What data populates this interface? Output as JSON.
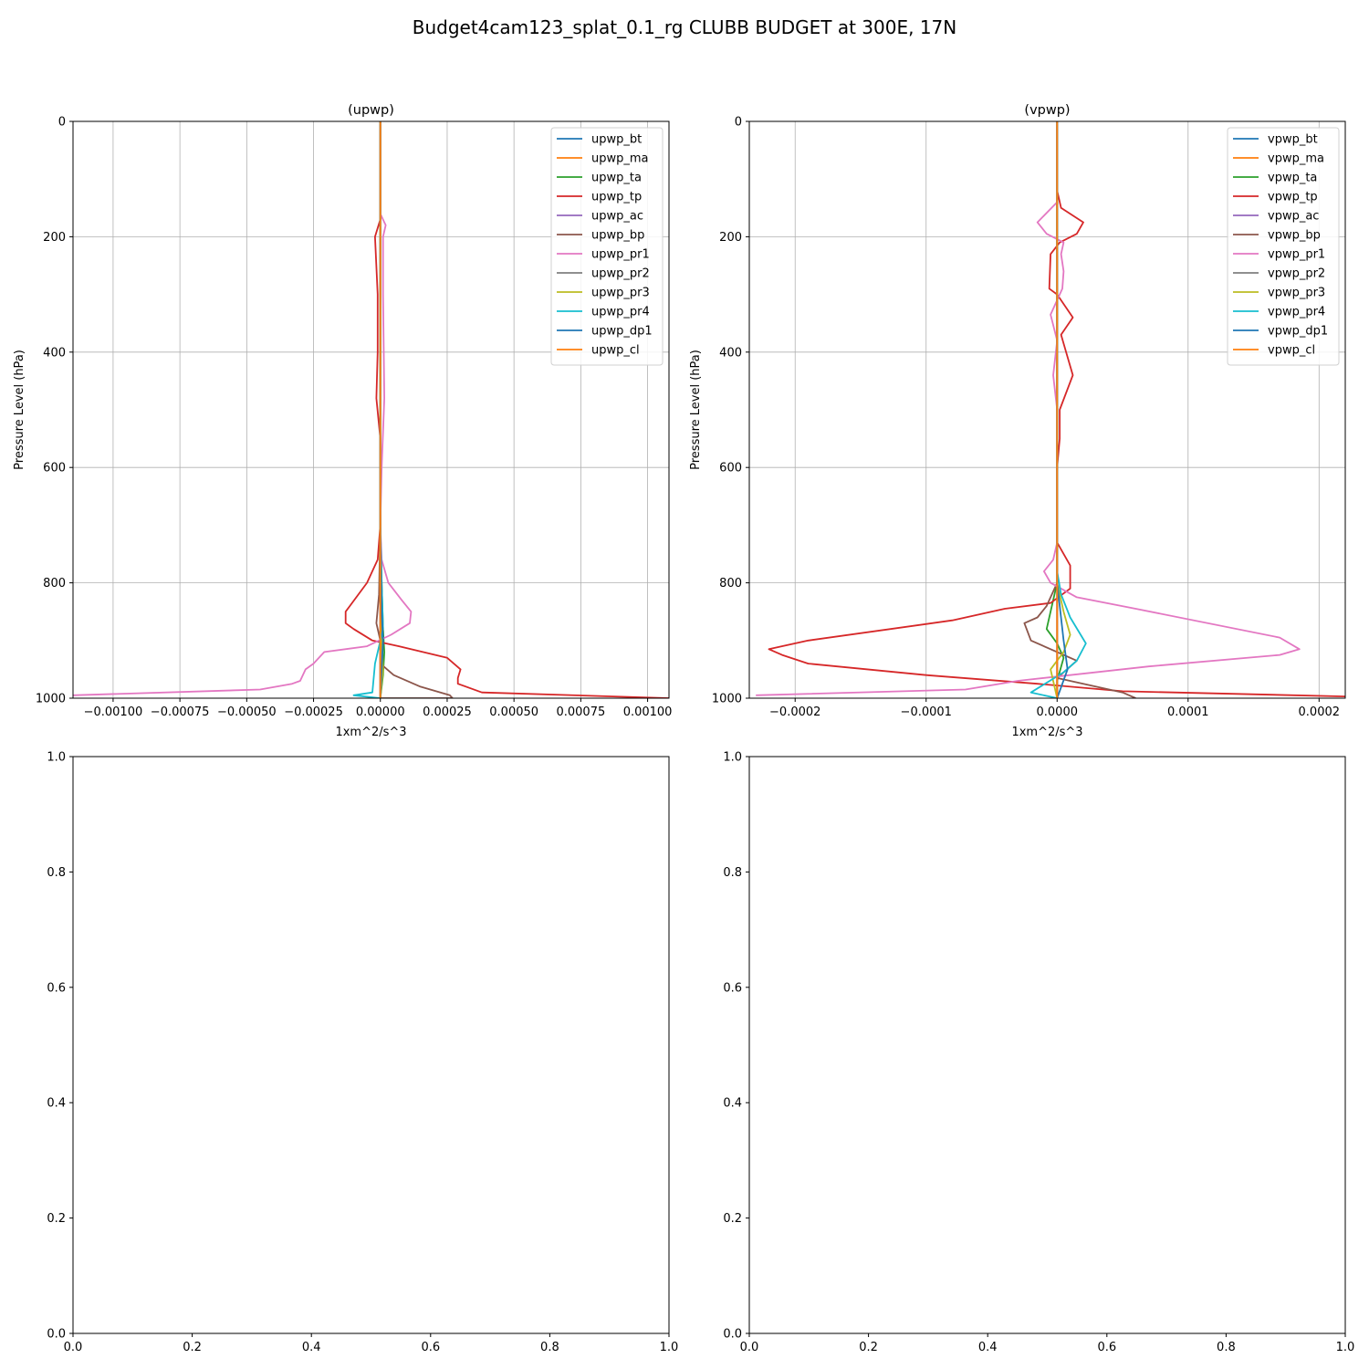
{
  "figure": {
    "title": "Budget4cam123_splat_0.1_rg CLUBB BUDGET at 300E, 17N"
  },
  "chart_data": [
    {
      "type": "line",
      "title": "(upwp)",
      "xlabel": "1xm^2/s^3",
      "ylabel": "Pressure Level (hPa)",
      "xlim": [
        -0.00115,
        0.00108
      ],
      "ylim": [
        1000,
        0
      ],
      "x_ticks": [
        -0.001,
        -0.00075,
        -0.0005,
        -0.00025,
        0.0,
        0.00025,
        0.0005,
        0.00075,
        0.001
      ],
      "x_tick_labels": [
        "−0.00100",
        "−0.00075",
        "−0.00050",
        "−0.00025",
        "0.00000",
        "0.00025",
        "0.00050",
        "0.00075",
        "0.00100"
      ],
      "y_ticks": [
        0,
        200,
        400,
        600,
        800,
        1000
      ],
      "y_tick_labels": [
        "0",
        "200",
        "400",
        "600",
        "800",
        "1000"
      ],
      "grid": true,
      "legend": "top-right",
      "series": [
        {
          "name": "upwp_bt",
          "color": "#1f77b4",
          "points": [
            [
              0,
              0
            ],
            [
              0,
              1000
            ]
          ]
        },
        {
          "name": "upwp_ma",
          "color": "#ff7f0e",
          "points": [
            [
              0,
              0
            ],
            [
              0,
              1000
            ]
          ]
        },
        {
          "name": "upwp_ta",
          "color": "#2ca02c",
          "points": [
            [
              0,
              0
            ],
            [
              0,
              700
            ],
            [
              5e-06,
              800
            ],
            [
              1e-05,
              880
            ],
            [
              1.5e-05,
              920
            ],
            [
              1e-05,
              960
            ],
            [
              0,
              1000
            ]
          ]
        },
        {
          "name": "upwp_tp",
          "color": "#d62728",
          "points": [
            [
              0,
              0
            ],
            [
              0,
              170
            ],
            [
              -2e-05,
              200
            ],
            [
              -1e-05,
              300
            ],
            [
              -1e-05,
              400
            ],
            [
              -1.5e-05,
              480
            ],
            [
              0,
              550
            ],
            [
              0,
              700
            ],
            [
              -1e-05,
              760
            ],
            [
              -5e-05,
              800
            ],
            [
              -0.00013,
              850
            ],
            [
              -0.00013,
              870
            ],
            [
              -0.0001,
              880
            ],
            [
              -3e-05,
              900
            ],
            [
              7e-05,
              910
            ],
            [
              0.00025,
              930
            ],
            [
              0.0003,
              950
            ],
            [
              0.00029,
              965
            ],
            [
              0.00029,
              975
            ],
            [
              0.00038,
              990
            ],
            [
              0.00108,
              1000
            ]
          ]
        },
        {
          "name": "upwp_ac",
          "color": "#9467bd",
          "points": [
            [
              0,
              0
            ],
            [
              0,
              1000
            ]
          ]
        },
        {
          "name": "upwp_bp",
          "color": "#8c564b",
          "points": [
            [
              0,
              0
            ],
            [
              0,
              700
            ],
            [
              -5e-06,
              820
            ],
            [
              -1.5e-05,
              870
            ],
            [
              0,
              900
            ],
            [
              0,
              940
            ],
            [
              5e-05,
              960
            ],
            [
              0.00015,
              980
            ],
            [
              0.00026,
              995
            ],
            [
              0.00027,
              1000
            ],
            [
              0,
              1000
            ]
          ]
        },
        {
          "name": "upwp_pr1",
          "color": "#e377c2",
          "points": [
            [
              0,
              0
            ],
            [
              0,
              160
            ],
            [
              2e-05,
              180
            ],
            [
              1e-05,
              200
            ],
            [
              1e-05,
              300
            ],
            [
              1.5e-05,
              480
            ],
            [
              5e-06,
              600
            ],
            [
              0,
              700
            ],
            [
              5e-06,
              760
            ],
            [
              3e-05,
              800
            ],
            [
              8e-05,
              830
            ],
            [
              0.000115,
              850
            ],
            [
              0.00011,
              870
            ],
            [
              4e-05,
              890
            ],
            [
              -5e-05,
              910
            ],
            [
              -0.00021,
              920
            ],
            [
              -0.00025,
              940
            ],
            [
              -0.00028,
              950
            ],
            [
              -0.0003,
              970
            ],
            [
              -0.00033,
              975
            ],
            [
              -0.00045,
              985
            ],
            [
              -0.00115,
              995
            ]
          ]
        },
        {
          "name": "upwp_pr2",
          "color": "#7f7f7f",
          "points": [
            [
              0,
              0
            ],
            [
              0,
              1000
            ]
          ]
        },
        {
          "name": "upwp_pr3",
          "color": "#bcbd22",
          "points": [
            [
              0,
              0
            ],
            [
              0,
              800
            ],
            [
              5e-06,
              900
            ],
            [
              1e-05,
              950
            ],
            [
              0,
              1000
            ]
          ]
        },
        {
          "name": "upwp_pr4",
          "color": "#17becf",
          "points": [
            [
              0,
              0
            ],
            [
              0,
              700
            ],
            [
              5e-06,
              800
            ],
            [
              1e-05,
              880
            ],
            [
              -2e-05,
              940
            ],
            [
              -3e-05,
              990
            ],
            [
              -0.0001,
              995
            ],
            [
              0,
              1000
            ]
          ]
        },
        {
          "name": "upwp_dp1",
          "color": "#1f77b4",
          "points": [
            [
              0,
              0
            ],
            [
              0,
              700
            ],
            [
              5e-06,
              850
            ],
            [
              1e-05,
              900
            ],
            [
              0,
              1000
            ]
          ]
        },
        {
          "name": "upwp_cl",
          "color": "#ff7f0e",
          "points": [
            [
              0,
              0
            ],
            [
              0,
              1000
            ]
          ]
        }
      ]
    },
    {
      "type": "line",
      "title": "(vpwp)",
      "xlabel": "1xm^2/s^3",
      "ylabel": "Pressure Level (hPa)",
      "xlim": [
        -0.000235,
        0.00022
      ],
      "ylim": [
        1000,
        0
      ],
      "x_ticks": [
        -0.0002,
        -0.0001,
        0.0,
        0.0001,
        0.0002
      ],
      "x_tick_labels": [
        "−0.0002",
        "−0.0001",
        "0.0000",
        "0.0001",
        "0.0002"
      ],
      "y_ticks": [
        0,
        200,
        400,
        600,
        800,
        1000
      ],
      "y_tick_labels": [
        "0",
        "200",
        "400",
        "600",
        "800",
        "1000"
      ],
      "grid": true,
      "legend": "top-right",
      "series": [
        {
          "name": "vpwp_bt",
          "color": "#1f77b4",
          "points": [
            [
              0,
              0
            ],
            [
              0,
              1000
            ]
          ]
        },
        {
          "name": "vpwp_ma",
          "color": "#ff7f0e",
          "points": [
            [
              0,
              0
            ],
            [
              0,
              1000
            ]
          ]
        },
        {
          "name": "vpwp_ta",
          "color": "#2ca02c",
          "points": [
            [
              0,
              0
            ],
            [
              0,
              800
            ],
            [
              -5e-06,
              850
            ],
            [
              -8e-06,
              880
            ],
            [
              0,
              905
            ],
            [
              5e-06,
              930
            ],
            [
              0,
              970
            ],
            [
              0,
              1000
            ]
          ]
        },
        {
          "name": "vpwp_tp",
          "color": "#d62728",
          "points": [
            [
              0,
              0
            ],
            [
              0,
              120
            ],
            [
              3e-06,
              150
            ],
            [
              2e-05,
              175
            ],
            [
              1.5e-05,
              195
            ],
            [
              2e-06,
              210
            ],
            [
              -5e-06,
              230
            ],
            [
              -6e-06,
              290
            ],
            [
              0,
              300
            ],
            [
              1.2e-05,
              340
            ],
            [
              3e-06,
              370
            ],
            [
              1.2e-05,
              440
            ],
            [
              2e-06,
              500
            ],
            [
              2e-06,
              550
            ],
            [
              0,
              600
            ],
            [
              0,
              730
            ],
            [
              1e-05,
              770
            ],
            [
              1e-05,
              810
            ],
            [
              -5e-06,
              835
            ],
            [
              -4e-05,
              845
            ],
            [
              -8e-05,
              865
            ],
            [
              -0.00019,
              900
            ],
            [
              -0.00022,
              915
            ],
            [
              -0.00021,
              925
            ],
            [
              -0.00019,
              940
            ],
            [
              -0.0001,
              960
            ],
            [
              -1.5e-05,
              975
            ],
            [
              5e-05,
              988
            ],
            [
              0.00022,
              997
            ]
          ]
        },
        {
          "name": "vpwp_ac",
          "color": "#9467bd",
          "points": [
            [
              0,
              0
            ],
            [
              0,
              1000
            ]
          ]
        },
        {
          "name": "vpwp_bp",
          "color": "#8c564b",
          "points": [
            [
              0,
              0
            ],
            [
              0,
              800
            ],
            [
              -8e-06,
              840
            ],
            [
              -1.5e-05,
              860
            ],
            [
              -2.5e-05,
              870
            ],
            [
              -2e-05,
              900
            ],
            [
              5e-06,
              925
            ],
            [
              1.5e-05,
              935
            ],
            [
              0,
              965
            ],
            [
              2e-05,
              975
            ],
            [
              5e-05,
              990
            ],
            [
              6e-05,
              1000
            ]
          ]
        },
        {
          "name": "vpwp_pr1",
          "color": "#e377c2",
          "points": [
            [
              0,
              0
            ],
            [
              0,
              140
            ],
            [
              -1.5e-05,
              175
            ],
            [
              -8e-06,
              195
            ],
            [
              5e-06,
              210
            ],
            [
              3e-06,
              230
            ],
            [
              5e-06,
              260
            ],
            [
              4e-06,
              290
            ],
            [
              -5e-06,
              335
            ],
            [
              0,
              380
            ],
            [
              -3e-06,
              440
            ],
            [
              0,
              500
            ],
            [
              0,
              600
            ],
            [
              0,
              730
            ],
            [
              -3e-06,
              760
            ],
            [
              -1e-05,
              780
            ],
            [
              -5e-06,
              800
            ],
            [
              1.5e-05,
              825
            ],
            [
              6e-05,
              845
            ],
            [
              0.00017,
              895
            ],
            [
              0.000185,
              915
            ],
            [
              0.00017,
              925
            ],
            [
              7e-05,
              945
            ],
            [
              -3e-05,
              970
            ],
            [
              -7e-05,
              985
            ],
            [
              -0.00023,
              995
            ]
          ]
        },
        {
          "name": "vpwp_pr2",
          "color": "#7f7f7f",
          "points": [
            [
              0,
              0
            ],
            [
              0,
              1000
            ]
          ]
        },
        {
          "name": "vpwp_pr3",
          "color": "#bcbd22",
          "points": [
            [
              0,
              0
            ],
            [
              0,
              800
            ],
            [
              5e-06,
              850
            ],
            [
              1e-05,
              890
            ],
            [
              5e-06,
              920
            ],
            [
              -5e-06,
              950
            ],
            [
              0,
              1000
            ]
          ]
        },
        {
          "name": "vpwp_pr4",
          "color": "#17becf",
          "points": [
            [
              0,
              0
            ],
            [
              0,
              780
            ],
            [
              3e-06,
              820
            ],
            [
              1e-05,
              860
            ],
            [
              2.2e-05,
              905
            ],
            [
              1.5e-05,
              935
            ],
            [
              5e-06,
              955
            ],
            [
              -2e-05,
              990
            ],
            [
              0,
              1000
            ]
          ]
        },
        {
          "name": "vpwp_dp1",
          "color": "#1f77b4",
          "points": [
            [
              0,
              0
            ],
            [
              0,
              800
            ],
            [
              5e-06,
              900
            ],
            [
              8e-06,
              950
            ],
            [
              0,
              1000
            ]
          ]
        },
        {
          "name": "vpwp_cl",
          "color": "#ff7f0e",
          "points": [
            [
              0,
              0
            ],
            [
              0,
              1000
            ]
          ]
        }
      ]
    },
    {
      "type": "line",
      "title": "",
      "xlim": [
        0,
        1
      ],
      "ylim": [
        0,
        1
      ],
      "x_ticks": [
        0,
        0.2,
        0.4,
        0.6,
        0.8,
        1.0
      ],
      "x_tick_labels": [
        "0.0",
        "0.2",
        "0.4",
        "0.6",
        "0.8",
        "1.0"
      ],
      "y_ticks": [
        0,
        0.2,
        0.4,
        0.6,
        0.8,
        1.0
      ],
      "y_tick_labels": [
        "0.0",
        "0.2",
        "0.4",
        "0.6",
        "0.8",
        "1.0"
      ],
      "grid": false,
      "series": []
    },
    {
      "type": "line",
      "title": "",
      "xlim": [
        0,
        1
      ],
      "ylim": [
        0,
        1
      ],
      "x_ticks": [
        0,
        0.2,
        0.4,
        0.6,
        0.8,
        1.0
      ],
      "x_tick_labels": [
        "0.0",
        "0.2",
        "0.4",
        "0.6",
        "0.8",
        "1.0"
      ],
      "y_ticks": [
        0,
        0.2,
        0.4,
        0.6,
        0.8,
        1.0
      ],
      "y_tick_labels": [
        "0.0",
        "0.2",
        "0.4",
        "0.6",
        "0.8",
        "1.0"
      ],
      "grid": false,
      "series": []
    }
  ]
}
